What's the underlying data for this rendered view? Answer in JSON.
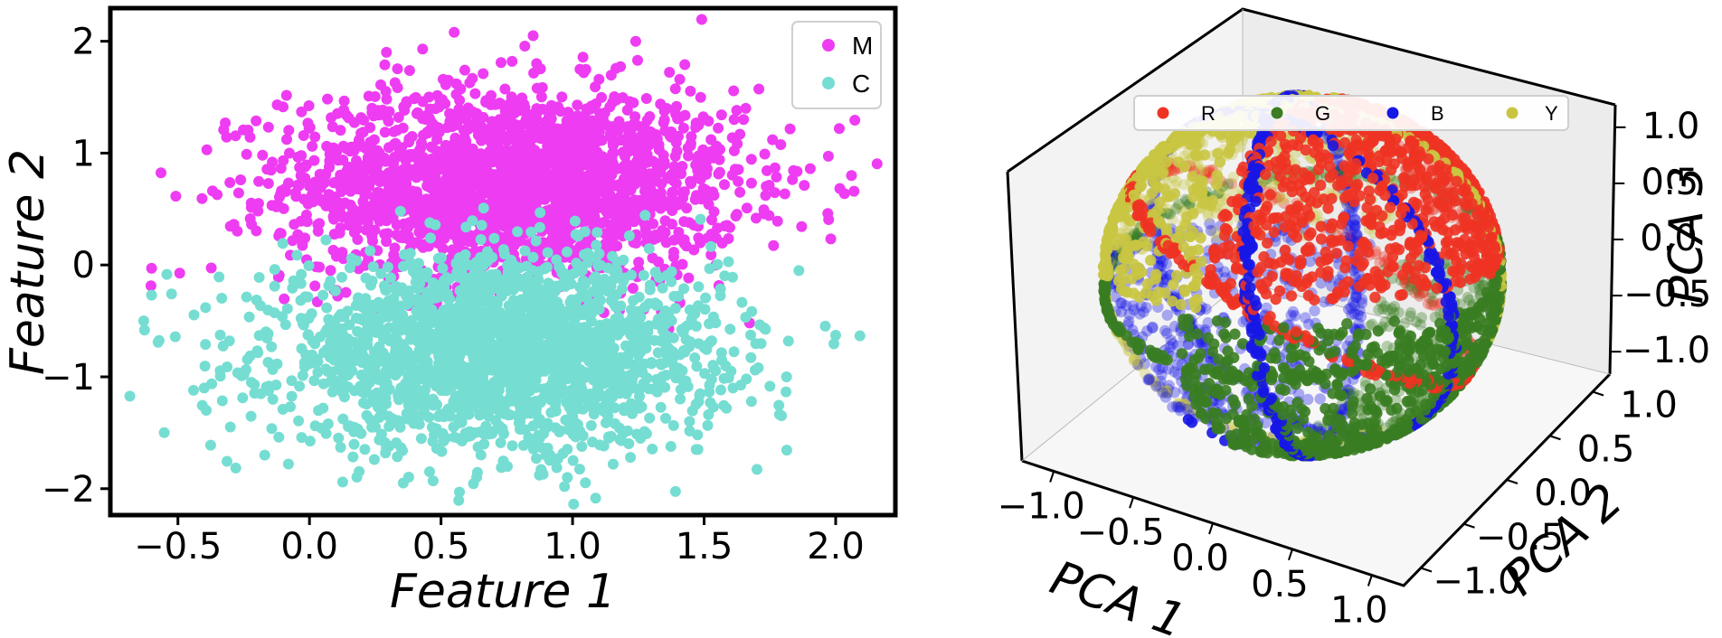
{
  "chart_data": [
    {
      "type": "scatter",
      "title": "",
      "xlabel": "Feature 1",
      "ylabel": "Feature 2",
      "xlim": [
        -0.75,
        2.22
      ],
      "ylim": [
        -2.22,
        2.28
      ],
      "xticks": [
        -0.5,
        0.0,
        0.5,
        1.0,
        1.5,
        2.0
      ],
      "xtick_labels": [
        "−0.5",
        "0.0",
        "0.5",
        "1.0",
        "1.5",
        "2.0"
      ],
      "yticks": [
        -2,
        -1,
        0,
        1,
        2
      ],
      "ytick_labels": [
        "−2",
        "−1",
        "0",
        "1",
        "2"
      ],
      "grid": false,
      "legend": "top-right",
      "series": [
        {
          "name": "M",
          "color": "#ee3cf2",
          "distribution": {
            "x_mean": 0.78,
            "x_std": 0.43,
            "y_mean": 0.72,
            "y_std": 0.43,
            "approx_count": 2200
          },
          "points": [
            [
              0.55,
              2.08
            ],
            [
              0.85,
              2.05
            ],
            [
              1.24,
              2.0
            ],
            [
              0.43,
              1.93
            ],
            [
              0.77,
              1.82
            ],
            [
              -0.6,
              -0.03
            ],
            [
              2.06,
              0.8
            ],
            [
              1.97,
              0.46
            ],
            [
              1.76,
              1.12
            ],
            [
              -0.39,
              1.03
            ],
            [
              1.65,
              1.3
            ],
            [
              -0.32,
              1.27
            ]
          ]
        },
        {
          "name": "C",
          "color": "#76ddd2",
          "distribution": {
            "x_mean": 0.72,
            "x_std": 0.42,
            "y_mean": -0.78,
            "y_std": 0.42,
            "approx_count": 2200
          },
          "points": [
            [
              0.57,
              -2.03
            ],
            [
              0.47,
              -1.93
            ],
            [
              -0.17,
              -1.7
            ],
            [
              -0.08,
              -1.78
            ],
            [
              1.22,
              -1.72
            ],
            [
              1.47,
              -1.65
            ],
            [
              -0.63,
              -0.5
            ],
            [
              -0.6,
              -0.27
            ],
            [
              1.86,
              -0.05
            ],
            [
              1.68,
              -1.22
            ],
            [
              -0.4,
              -1.1
            ],
            [
              0.98,
              -1.9
            ]
          ]
        }
      ]
    },
    {
      "type": "scatter",
      "projection": "3d",
      "title": "",
      "xlabel": "PCA 1",
      "ylabel": "PCA 2",
      "zlabel": "PCA 3",
      "xlim": [
        -1.2,
        1.2
      ],
      "ylim": [
        -1.2,
        1.2
      ],
      "zlim": [
        -1.2,
        1.2
      ],
      "xtick_labels": [
        "−1.0",
        "−0.5",
        "0.0",
        "0.5",
        "1.0"
      ],
      "ytick_labels": [
        "−1.0",
        "−0.5",
        "0.0",
        "0.5",
        "1.0"
      ],
      "ztick_labels": [
        "−1.0",
        "−0.5",
        "0.0",
        "0.5",
        "1.0"
      ],
      "ticks": [
        -1.0,
        -0.5,
        0.0,
        0.5,
        1.0
      ],
      "grid": false,
      "legend": "top",
      "series": [
        {
          "name": "R",
          "color": "#ee3324",
          "region": "upper-right cap of unit sphere"
        },
        {
          "name": "G",
          "color": "#3a7d22",
          "region": "lower-right cap of unit sphere"
        },
        {
          "name": "B",
          "color": "#1616e6",
          "region": "great-circle bands and left cap"
        },
        {
          "name": "Y",
          "color": "#c9c542",
          "region": "upper-left cap of unit sphere"
        }
      ]
    }
  ]
}
